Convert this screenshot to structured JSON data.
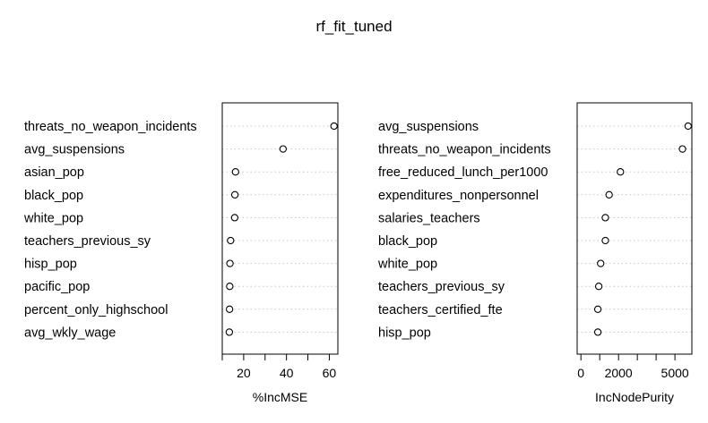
{
  "title": "rf_fit_tuned",
  "chart_data": [
    {
      "type": "scatter",
      "subtype": "dotchart",
      "xlabel": "%IncMSE",
      "xlim": [
        10,
        64
      ],
      "xticks": [
        20,
        40,
        60
      ],
      "xminor": [
        10,
        20,
        30,
        40,
        50,
        60
      ],
      "categories": [
        "threats_no_weapon_incidents",
        "avg_suspensions",
        "asian_pop",
        "black_pop",
        "white_pop",
        "teachers_previous_sy",
        "hisp_pop",
        "pacific_pop",
        "percent_only_highschool",
        "avg_wkly_wage"
      ],
      "values": [
        62.2,
        38.4,
        16.2,
        15.9,
        15.8,
        13.9,
        13.6,
        13.5,
        13.4,
        13.3
      ],
      "grid": "dotted horizontal"
    },
    {
      "type": "scatter",
      "subtype": "dotchart",
      "xlabel": "IncNodePurity",
      "xlim": [
        -200,
        5900
      ],
      "xticks": [
        0,
        2000,
        5000
      ],
      "xminor": [
        0,
        1000,
        2000,
        3000,
        4000,
        5000
      ],
      "categories": [
        "avg_suspensions",
        "threats_no_weapon_incidents",
        "free_reduced_lunch_per1000",
        "expenditures_nonpersonnel",
        "salaries_teachers",
        "black_pop",
        "white_pop",
        "teachers_previous_sy",
        "teachers_certified_fte",
        "hisp_pop"
      ],
      "values": [
        5700,
        5400,
        2100,
        1500,
        1300,
        1300,
        1050,
        950,
        900,
        900
      ],
      "grid": "dotted horizontal"
    }
  ]
}
